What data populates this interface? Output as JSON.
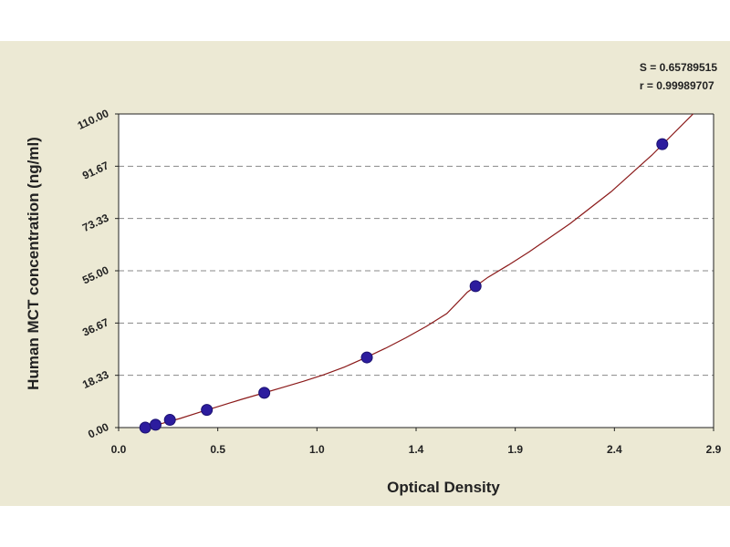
{
  "chart_data": {
    "type": "scatter",
    "title": "",
    "xlabel": "Optical Density",
    "ylabel": "Human MCT concentration (ng/ml)",
    "xlim": [
      0.0,
      2.9
    ],
    "ylim": [
      0.0,
      110.0
    ],
    "x_ticks": [
      "0.0",
      "0.5",
      "1.0",
      "1.4",
      "1.9",
      "2.4",
      "2.9"
    ],
    "y_ticks": [
      "0.00",
      "18.33",
      "36.67",
      "55.00",
      "73.33",
      "91.67",
      "110.00"
    ],
    "grid": "horizontal dashed",
    "fit_stats": {
      "s": "S = 0.65789515",
      "r": "r = 0.99989707"
    },
    "series": [
      {
        "points": [
          {
            "x": 0.13,
            "y": 0.0
          },
          {
            "x": 0.18,
            "y": 1.0
          },
          {
            "x": 0.25,
            "y": 2.7
          },
          {
            "x": 0.43,
            "y": 6.2
          },
          {
            "x": 0.71,
            "y": 12.2
          },
          {
            "x": 1.21,
            "y": 24.6
          },
          {
            "x": 1.74,
            "y": 49.6
          },
          {
            "x": 2.65,
            "y": 99.4
          }
        ],
        "color": "#2C1C9E"
      }
    ],
    "fit_curve": {
      "color": "#8B1A1A",
      "samples": [
        [
          0.11,
          0.0
        ],
        [
          0.2,
          1.2
        ],
        [
          0.3,
          3.2
        ],
        [
          0.4,
          5.5
        ],
        [
          0.5,
          7.7
        ],
        [
          0.6,
          9.9
        ],
        [
          0.7,
          12.0
        ],
        [
          0.8,
          14.1
        ],
        [
          0.9,
          16.2
        ],
        [
          1.0,
          18.5
        ],
        [
          1.1,
          21.2
        ],
        [
          1.2,
          24.4
        ],
        [
          1.3,
          27.8
        ],
        [
          1.4,
          31.5
        ],
        [
          1.5,
          35.5
        ],
        [
          1.6,
          40.0
        ],
        [
          1.7,
          47.5
        ],
        [
          1.8,
          52.7
        ],
        [
          1.9,
          57.0
        ],
        [
          2.0,
          61.6
        ],
        [
          2.2,
          71.5
        ],
        [
          2.4,
          82.7
        ],
        [
          2.6,
          95.6
        ],
        [
          2.8,
          110.0
        ]
      ]
    },
    "colors": {
      "panel_bg": "#ECE9D4",
      "plot_bg": "#FFFFFF",
      "grid": "#888888",
      "axis": "#222222"
    }
  }
}
